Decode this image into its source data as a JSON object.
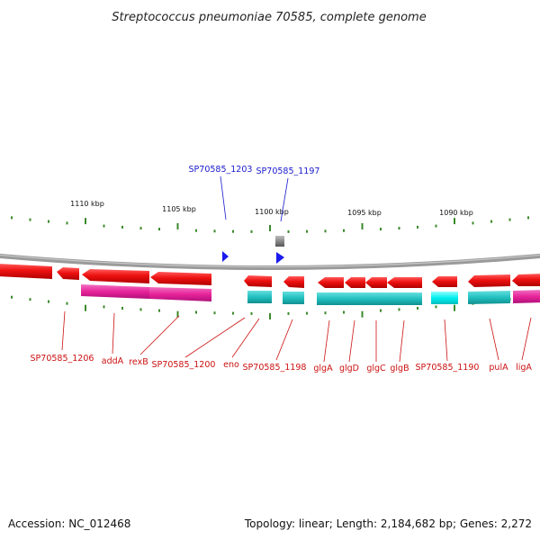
{
  "title": "Streptococcus pneumoniae 70585, complete genome",
  "scale_labels": [
    "1110 kbp",
    "1105 kbp",
    "1100 kbp",
    "1095 kbp",
    "1090 kbp"
  ],
  "top_labels": [
    "SP70585_1203",
    "SP70585_1197"
  ],
  "bottom_labels": [
    "SP70585_1206",
    "addA",
    "rexB",
    "SP70585_1200",
    "eno",
    "SP70585_1198",
    "glgA",
    "glgD",
    "glgC",
    "glgB",
    "SP70585_1190",
    "pulA",
    "ligA"
  ],
  "footer": {
    "accession": "Accession: NC_012468",
    "stats": "Topology: linear; Length: 2,184,682 bp; Genes: 2,272"
  },
  "colors": {
    "cds": "#ee1111",
    "rna_magenta": "#e8239a",
    "rna_cyan": "#22c0c0",
    "rna_bright_cyan": "#00f0f0",
    "small_feature": "#1a1aee",
    "tick": "#3a8a2a",
    "backbone": "#8a8a8a"
  }
}
